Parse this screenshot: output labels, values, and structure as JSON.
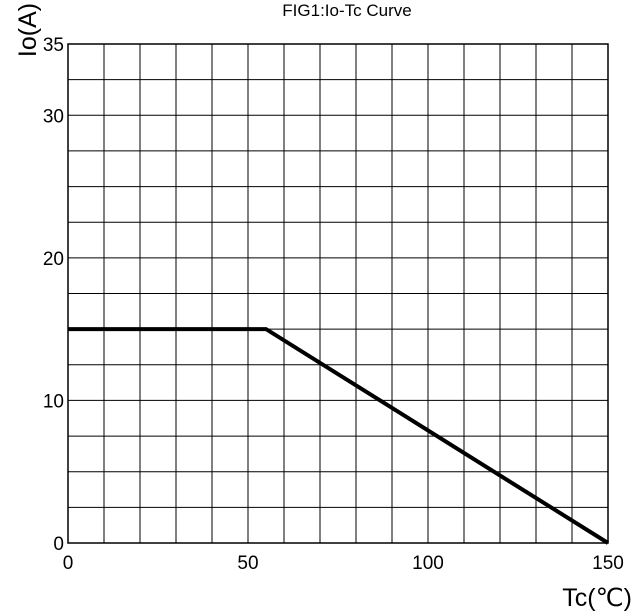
{
  "chart_data": {
    "type": "line",
    "title": "FIG1:Io-Tc Curve",
    "xlabel": "Tc(℃)",
    "ylabel": "Io(A)",
    "xlim": [
      0,
      150
    ],
    "ylim": [
      0,
      35
    ],
    "x_ticks": [
      0,
      50,
      100,
      150
    ],
    "y_ticks": [
      0,
      10,
      20,
      30,
      35
    ],
    "x_grid_step": 10,
    "y_grid_step": 2.5,
    "grid": true,
    "series": [
      {
        "x": [
          0,
          55,
          150
        ],
        "y": [
          15,
          15,
          0
        ]
      }
    ]
  }
}
